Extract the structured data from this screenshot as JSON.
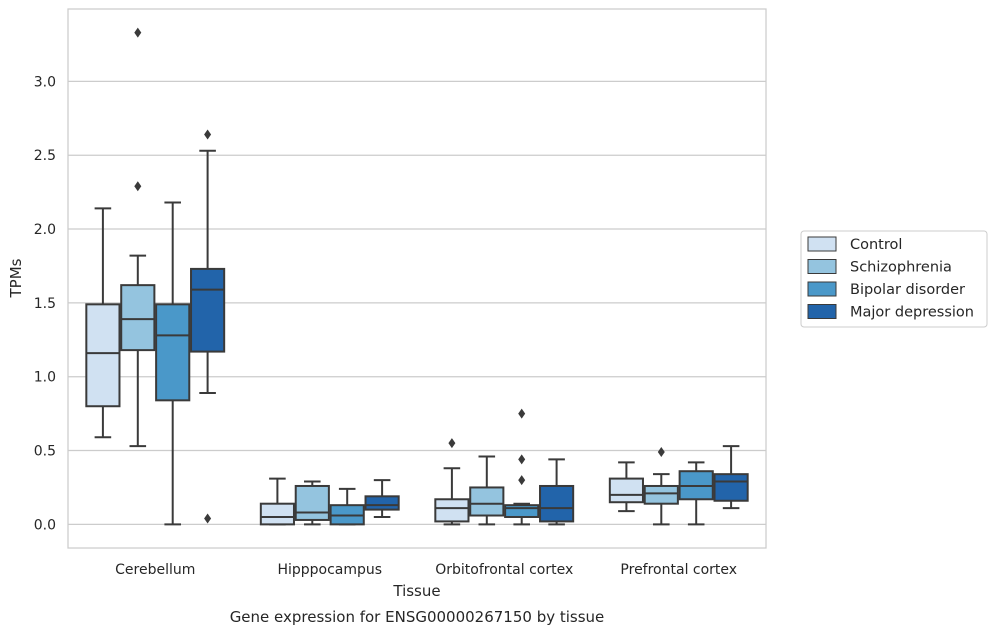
{
  "chart_data": {
    "type": "boxplot",
    "title": "",
    "xlabel": "Tissue",
    "ylabel": "TPMs",
    "caption": "Gene expression for ENSG00000267150 by tissue",
    "ylim": [
      -0.16,
      3.49
    ],
    "yticks": [
      0.0,
      0.5,
      1.0,
      1.5,
      2.0,
      2.5,
      3.0
    ],
    "ytick_labels": [
      "0.0",
      "0.5",
      "1.0",
      "1.5",
      "2.0",
      "2.5",
      "3.0"
    ],
    "grid": "horizontal",
    "legend_position": "right",
    "categories": [
      "Cerebellum",
      "Hipppocampus",
      "Orbitofrontal cortex",
      "Prefrontal cortex"
    ],
    "series": [
      {
        "name": "Control",
        "color": "#d0e1f2",
        "boxes": [
          {
            "whislo": 0.59,
            "q1": 0.8,
            "med": 1.16,
            "q3": 1.49,
            "whishi": 2.14,
            "fliers": []
          },
          {
            "whislo": 0.0,
            "q1": 0.0,
            "med": 0.05,
            "q3": 0.14,
            "whishi": 0.31,
            "fliers": []
          },
          {
            "whislo": 0.0,
            "q1": 0.02,
            "med": 0.11,
            "q3": 0.17,
            "whishi": 0.38,
            "fliers": [
              0.55
            ]
          },
          {
            "whislo": 0.09,
            "q1": 0.15,
            "med": 0.2,
            "q3": 0.31,
            "whishi": 0.42,
            "fliers": []
          }
        ]
      },
      {
        "name": "Schizophrenia",
        "color": "#94c4df",
        "boxes": [
          {
            "whislo": 0.53,
            "q1": 1.18,
            "med": 1.39,
            "q3": 1.62,
            "whishi": 1.82,
            "fliers": [
              2.29,
              3.33
            ]
          },
          {
            "whislo": 0.0,
            "q1": 0.03,
            "med": 0.08,
            "q3": 0.26,
            "whishi": 0.29,
            "fliers": []
          },
          {
            "whislo": 0.0,
            "q1": 0.06,
            "med": 0.14,
            "q3": 0.25,
            "whishi": 0.46,
            "fliers": []
          },
          {
            "whislo": 0.0,
            "q1": 0.14,
            "med": 0.21,
            "q3": 0.26,
            "whishi": 0.34,
            "fliers": [
              0.49
            ]
          }
        ]
      },
      {
        "name": "Bipolar disorder",
        "color": "#4a98c9",
        "boxes": [
          {
            "whislo": 0.0,
            "q1": 0.84,
            "med": 1.28,
            "q3": 1.49,
            "whishi": 2.18,
            "fliers": []
          },
          {
            "whislo": 0.0,
            "q1": 0.0,
            "med": 0.06,
            "q3": 0.13,
            "whishi": 0.24,
            "fliers": []
          },
          {
            "whislo": 0.0,
            "q1": 0.05,
            "med": 0.11,
            "q3": 0.13,
            "whishi": 0.14,
            "fliers": [
              0.3,
              0.44,
              0.75
            ]
          },
          {
            "whislo": 0.0,
            "q1": 0.17,
            "med": 0.26,
            "q3": 0.36,
            "whishi": 0.42,
            "fliers": []
          }
        ]
      },
      {
        "name": "Major depression",
        "color": "#2264aa",
        "boxes": [
          {
            "whislo": 0.89,
            "q1": 1.17,
            "med": 1.59,
            "q3": 1.73,
            "whishi": 2.53,
            "fliers": [
              0.04,
              2.64
            ]
          },
          {
            "whislo": 0.05,
            "q1": 0.1,
            "med": 0.13,
            "q3": 0.19,
            "whishi": 0.3,
            "fliers": []
          },
          {
            "whislo": 0.0,
            "q1": 0.02,
            "med": 0.11,
            "q3": 0.26,
            "whishi": 0.44,
            "fliers": []
          },
          {
            "whislo": 0.11,
            "q1": 0.16,
            "med": 0.29,
            "q3": 0.34,
            "whishi": 0.53,
            "fliers": []
          }
        ]
      }
    ]
  }
}
